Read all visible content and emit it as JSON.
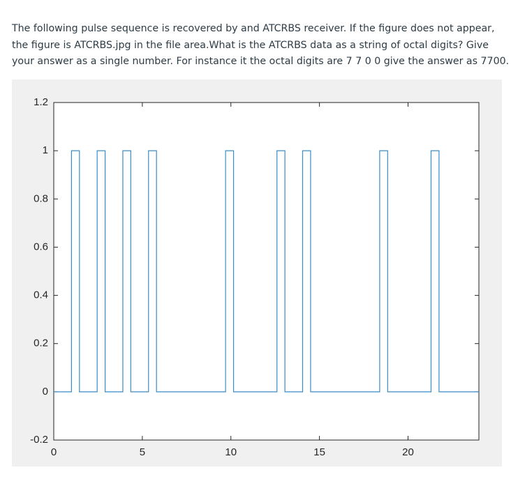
{
  "question": {
    "lines": [
      "The following pulse sequence is recovered by and ATCRBS receiver. If the figure does not appear,",
      "the figure is ATCRBS.jpg in the file area.What is the ATCRBS data as a string of octal digits?  Give",
      "your answer as a single number. For instance it the octal digits are 7 7 0 0 give the  answer as 7700."
    ]
  },
  "chart_data": {
    "type": "line",
    "x": [
      0,
      1,
      1,
      1.45,
      1.45,
      2.45,
      2.45,
      2.9,
      2.9,
      3.9,
      3.9,
      4.35,
      4.35,
      5.35,
      5.35,
      5.8,
      5.8,
      9.7,
      9.7,
      10.15,
      10.15,
      12.6,
      12.6,
      13.05,
      13.05,
      14.05,
      14.05,
      14.5,
      14.5,
      18.4,
      18.4,
      18.85,
      18.85,
      21.3,
      21.3,
      21.75,
      21.75,
      24
    ],
    "series": [
      {
        "color": "#3a8cc6",
        "values": [
          0,
          0,
          1,
          1,
          0,
          0,
          1,
          1,
          0,
          0,
          1,
          1,
          0,
          0,
          1,
          1,
          0,
          0,
          1,
          1,
          0,
          0,
          1,
          1,
          0,
          0,
          1,
          1,
          0,
          0,
          1,
          1,
          0,
          0,
          1,
          1,
          0,
          0
        ]
      }
    ],
    "xlim": [
      0,
      24
    ],
    "xticks": [
      0,
      5,
      10,
      15,
      20
    ],
    "ylim": [
      -0.2,
      1.2
    ],
    "yticks": [
      -0.2,
      0,
      0.2,
      0.4,
      0.6,
      0.8,
      1,
      1.2
    ]
  }
}
